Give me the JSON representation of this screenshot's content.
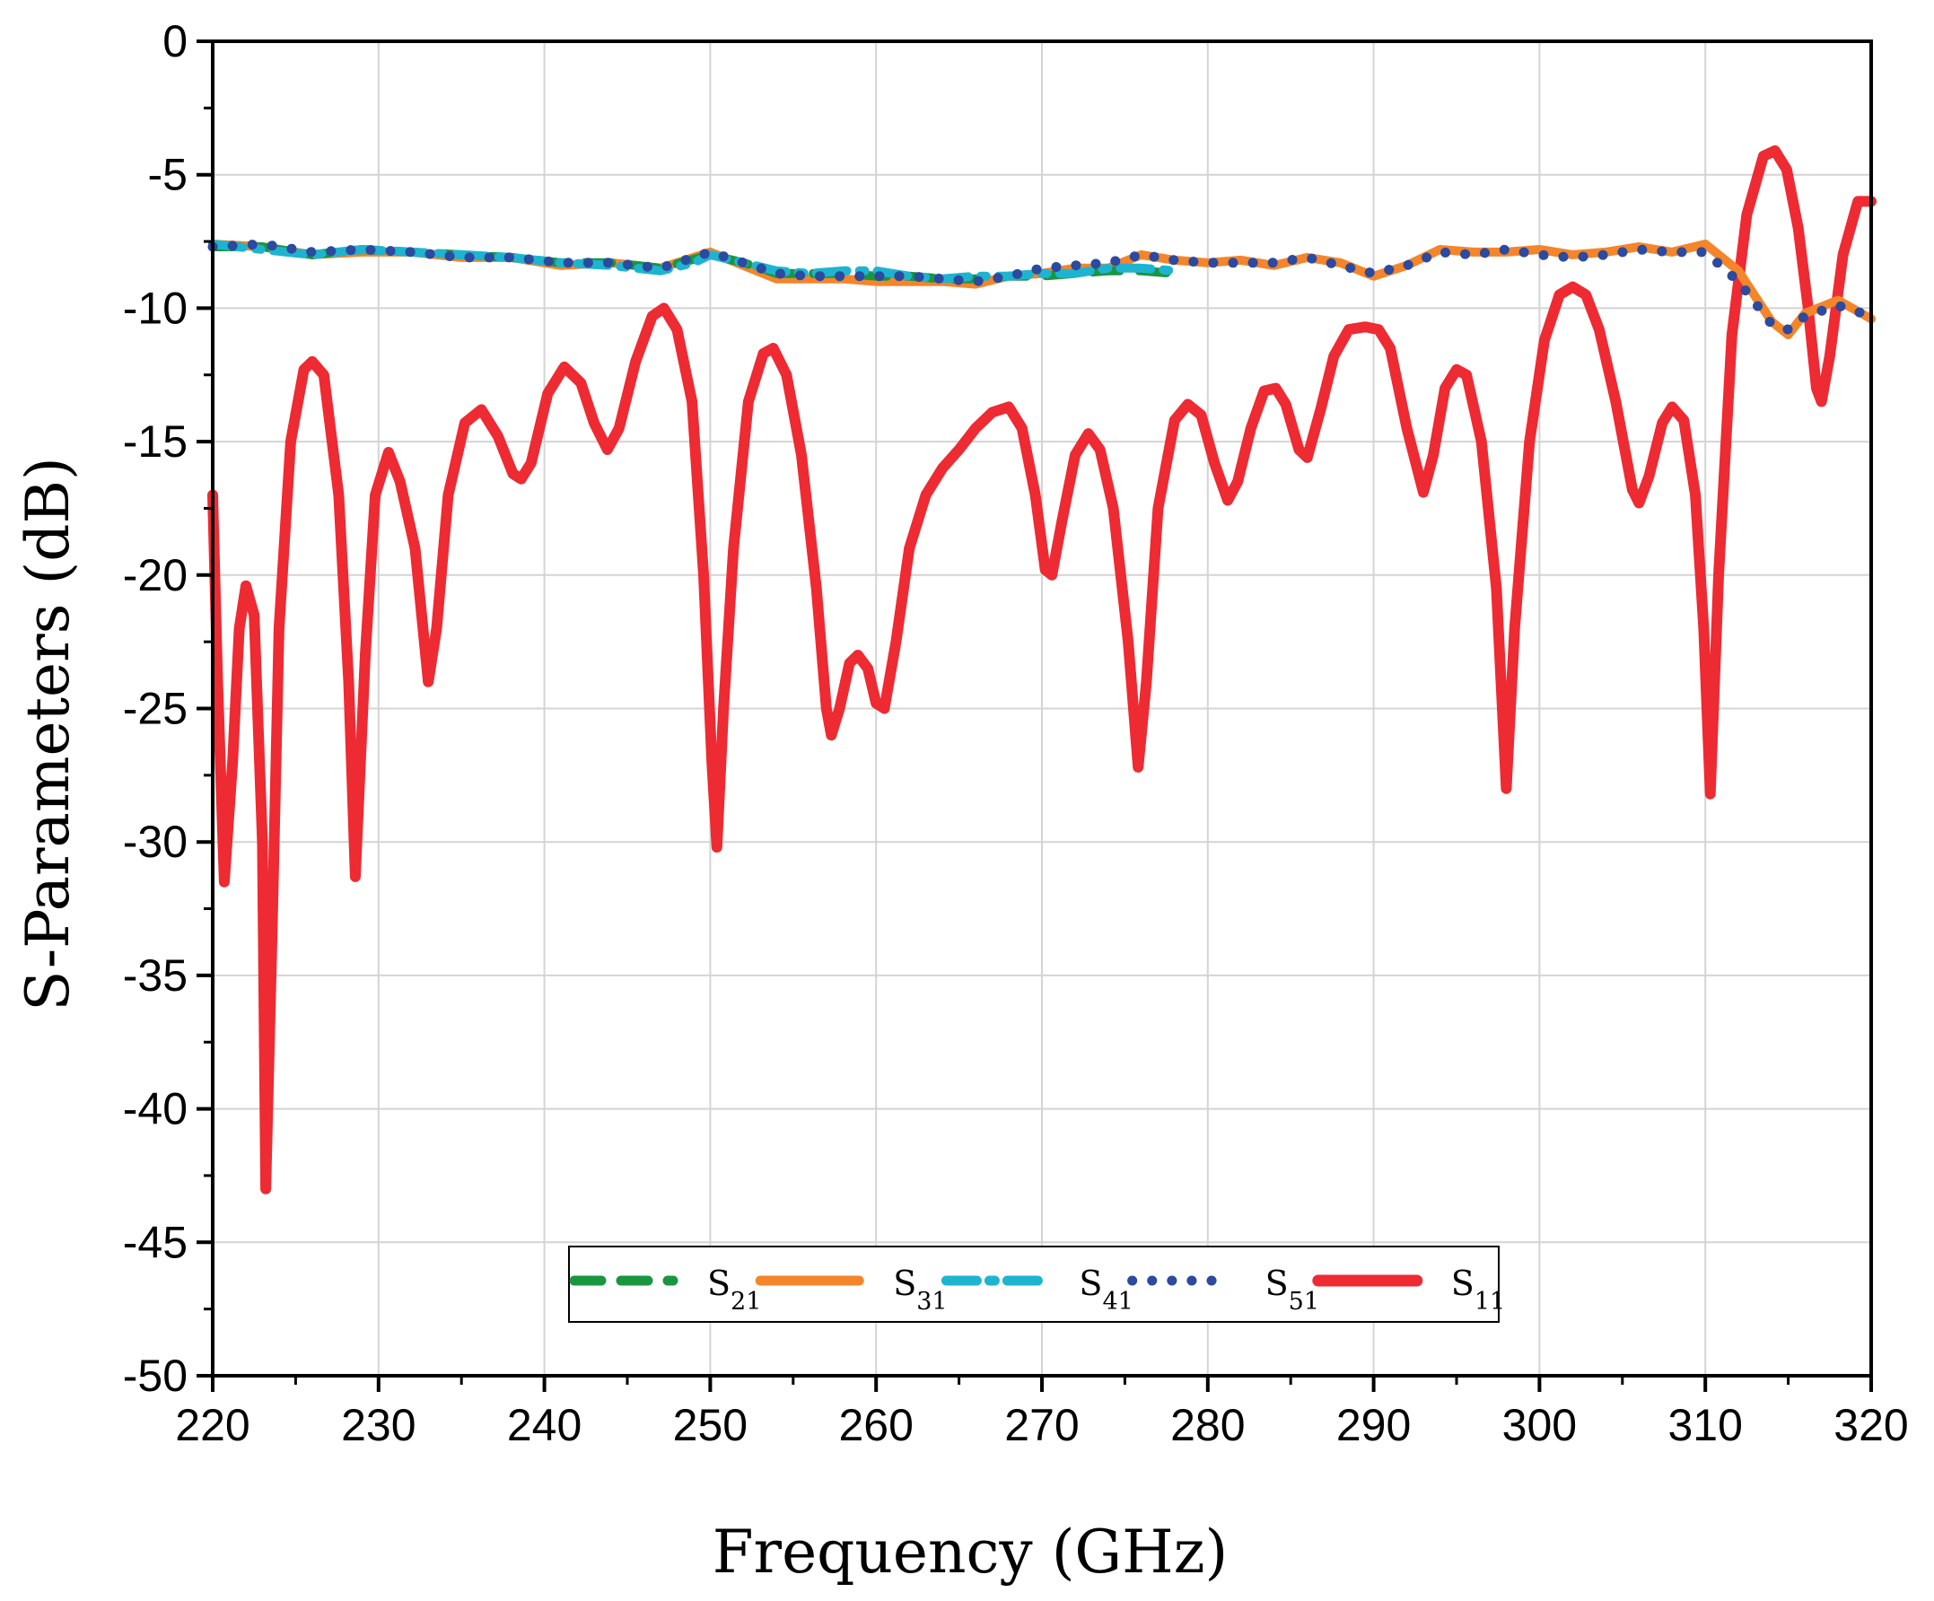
{
  "chart_data": {
    "type": "line",
    "xlabel": "Frequency (GHz)",
    "ylabel": "S-Parameters (dB)",
    "xlim": [
      220,
      320
    ],
    "ylim": [
      -50,
      0
    ],
    "x_ticks": [
      220,
      230,
      240,
      250,
      260,
      270,
      280,
      290,
      300,
      310,
      320
    ],
    "y_ticks": [
      0,
      -5,
      -10,
      -15,
      -20,
      -25,
      -30,
      -35,
      -40,
      -45,
      -50
    ],
    "grid": true,
    "legend_position": "bottom-center",
    "series": [
      {
        "name": "S",
        "name_subscript": "21",
        "color": "#1a9641",
        "style": "dashed",
        "points": [
          [
            220,
            -7.7
          ],
          [
            223,
            -7.7
          ],
          [
            226,
            -8.0
          ],
          [
            229,
            -7.8
          ],
          [
            232,
            -7.9
          ],
          [
            235,
            -8.0
          ],
          [
            238,
            -8.1
          ],
          [
            241,
            -8.3
          ],
          [
            244,
            -8.3
          ],
          [
            247,
            -8.5
          ],
          [
            250,
            -8.0
          ],
          [
            252,
            -8.3
          ],
          [
            254,
            -8.7
          ],
          [
            256,
            -8.7
          ],
          [
            258,
            -8.7
          ],
          [
            260,
            -8.8
          ],
          [
            262,
            -8.8
          ],
          [
            264,
            -8.9
          ],
          [
            266,
            -8.9
          ],
          [
            268,
            -8.8
          ],
          [
            270,
            -8.8
          ],
          [
            272,
            -8.7
          ],
          [
            274,
            -8.6
          ],
          [
            276,
            -8.6
          ],
          [
            278,
            -8.7
          ]
        ]
      },
      {
        "name": "S",
        "name_subscript": "31",
        "color": "#f5852a",
        "style": "solid",
        "points": [
          [
            220,
            -7.6
          ],
          [
            223,
            -7.7
          ],
          [
            226,
            -8.0
          ],
          [
            229,
            -7.9
          ],
          [
            232,
            -7.9
          ],
          [
            235,
            -8.1
          ],
          [
            238,
            -8.1
          ],
          [
            241,
            -8.4
          ],
          [
            244,
            -8.3
          ],
          [
            247,
            -8.5
          ],
          [
            250,
            -7.9
          ],
          [
            252,
            -8.4
          ],
          [
            254,
            -8.9
          ],
          [
            256,
            -8.9
          ],
          [
            258,
            -8.9
          ],
          [
            260,
            -9.0
          ],
          [
            262,
            -9.0
          ],
          [
            264,
            -9.0
          ],
          [
            266,
            -9.1
          ],
          [
            268,
            -8.8
          ],
          [
            270,
            -8.7
          ],
          [
            272,
            -8.5
          ],
          [
            274,
            -8.5
          ],
          [
            276,
            -8.0
          ],
          [
            278,
            -8.2
          ],
          [
            280,
            -8.3
          ],
          [
            282,
            -8.2
          ],
          [
            284,
            -8.4
          ],
          [
            286,
            -8.1
          ],
          [
            288,
            -8.3
          ],
          [
            290,
            -8.8
          ],
          [
            292,
            -8.4
          ],
          [
            294,
            -7.8
          ],
          [
            296,
            -7.9
          ],
          [
            298,
            -7.9
          ],
          [
            300,
            -7.8
          ],
          [
            302,
            -8.0
          ],
          [
            304,
            -7.9
          ],
          [
            306,
            -7.7
          ],
          [
            308,
            -7.9
          ],
          [
            310,
            -7.6
          ],
          [
            312,
            -8.6
          ],
          [
            314,
            -10.5
          ],
          [
            315,
            -11.0
          ],
          [
            316,
            -10.2
          ],
          [
            318,
            -9.7
          ],
          [
            320,
            -10.4
          ]
        ]
      },
      {
        "name": "S",
        "name_subscript": "41",
        "color": "#1eb4cf",
        "style": "dash-dot",
        "points": [
          [
            220,
            -7.6
          ],
          [
            223,
            -7.8
          ],
          [
            226,
            -8.0
          ],
          [
            229,
            -7.8
          ],
          [
            232,
            -7.9
          ],
          [
            235,
            -8.0
          ],
          [
            238,
            -8.1
          ],
          [
            241,
            -8.3
          ],
          [
            244,
            -8.4
          ],
          [
            247,
            -8.6
          ],
          [
            249,
            -8.3
          ],
          [
            250,
            -8.0
          ],
          [
            252,
            -8.3
          ],
          [
            254,
            -8.6
          ],
          [
            256,
            -8.7
          ],
          [
            258,
            -8.6
          ],
          [
            260,
            -8.6
          ],
          [
            262,
            -8.8
          ],
          [
            264,
            -8.9
          ],
          [
            266,
            -8.8
          ],
          [
            268,
            -8.8
          ],
          [
            270,
            -8.7
          ],
          [
            272,
            -8.7
          ],
          [
            274,
            -8.5
          ],
          [
            276,
            -8.5
          ],
          [
            278,
            -8.6
          ]
        ]
      },
      {
        "name": "S",
        "name_subscript": "51",
        "color": "#2b4aa0",
        "style": "dotted",
        "points": [
          [
            220,
            -7.7
          ],
          [
            223,
            -7.6
          ],
          [
            226,
            -7.9
          ],
          [
            229,
            -7.8
          ],
          [
            232,
            -7.9
          ],
          [
            235,
            -8.1
          ],
          [
            238,
            -8.1
          ],
          [
            241,
            -8.3
          ],
          [
            244,
            -8.3
          ],
          [
            247,
            -8.5
          ],
          [
            250,
            -7.9
          ],
          [
            252,
            -8.3
          ],
          [
            254,
            -8.7
          ],
          [
            256,
            -8.8
          ],
          [
            258,
            -8.8
          ],
          [
            260,
            -8.8
          ],
          [
            262,
            -8.8
          ],
          [
            264,
            -8.9
          ],
          [
            266,
            -9.0
          ],
          [
            268,
            -8.8
          ],
          [
            270,
            -8.5
          ],
          [
            272,
            -8.4
          ],
          [
            274,
            -8.3
          ],
          [
            276,
            -8.0
          ],
          [
            278,
            -8.2
          ],
          [
            280,
            -8.3
          ],
          [
            282,
            -8.3
          ],
          [
            284,
            -8.3
          ],
          [
            286,
            -8.1
          ],
          [
            288,
            -8.4
          ],
          [
            290,
            -8.7
          ],
          [
            292,
            -8.4
          ],
          [
            294,
            -7.9
          ],
          [
            296,
            -8.0
          ],
          [
            298,
            -7.8
          ],
          [
            300,
            -8.0
          ],
          [
            302,
            -8.1
          ],
          [
            304,
            -8.0
          ],
          [
            306,
            -7.8
          ],
          [
            308,
            -7.9
          ],
          [
            310,
            -7.9
          ],
          [
            312,
            -9.0
          ],
          [
            314,
            -10.6
          ],
          [
            315,
            -10.8
          ],
          [
            316,
            -10.3
          ],
          [
            318,
            -9.9
          ],
          [
            320,
            -10.3
          ]
        ]
      },
      {
        "name": "S",
        "name_subscript": "11",
        "color": "#ee2a32",
        "style": "solid",
        "points": [
          [
            220,
            -17.0
          ],
          [
            220.3,
            -24.0
          ],
          [
            220.7,
            -31.5
          ],
          [
            221.2,
            -27.0
          ],
          [
            221.6,
            -22.0
          ],
          [
            222.0,
            -20.4
          ],
          [
            222.5,
            -21.5
          ],
          [
            223.0,
            -30.0
          ],
          [
            223.2,
            -43.0
          ],
          [
            223.6,
            -33.0
          ],
          [
            224.0,
            -22.0
          ],
          [
            224.7,
            -15.0
          ],
          [
            225.5,
            -12.3
          ],
          [
            226.0,
            -12.0
          ],
          [
            226.7,
            -12.5
          ],
          [
            227.6,
            -17.0
          ],
          [
            228.2,
            -24.0
          ],
          [
            228.6,
            -31.3
          ],
          [
            229.2,
            -23.0
          ],
          [
            229.8,
            -17.0
          ],
          [
            230.6,
            -15.4
          ],
          [
            231.3,
            -16.5
          ],
          [
            232.2,
            -19.0
          ],
          [
            233.0,
            -24.0
          ],
          [
            233.5,
            -22.0
          ],
          [
            234.2,
            -17.0
          ],
          [
            235.2,
            -14.3
          ],
          [
            236.2,
            -13.8
          ],
          [
            237.2,
            -14.8
          ],
          [
            238.1,
            -16.2
          ],
          [
            238.6,
            -16.4
          ],
          [
            239.2,
            -15.8
          ],
          [
            240.2,
            -13.2
          ],
          [
            241.2,
            -12.2
          ],
          [
            242.2,
            -12.8
          ],
          [
            243.0,
            -14.3
          ],
          [
            243.8,
            -15.3
          ],
          [
            244.5,
            -14.5
          ],
          [
            245.5,
            -12.0
          ],
          [
            246.5,
            -10.3
          ],
          [
            247.2,
            -10.0
          ],
          [
            248.0,
            -10.8
          ],
          [
            248.9,
            -13.5
          ],
          [
            249.6,
            -20.0
          ],
          [
            250.1,
            -27.0
          ],
          [
            250.4,
            -30.2
          ],
          [
            250.8,
            -25.0
          ],
          [
            251.4,
            -19.0
          ],
          [
            252.3,
            -13.5
          ],
          [
            253.2,
            -11.7
          ],
          [
            253.8,
            -11.5
          ],
          [
            254.6,
            -12.5
          ],
          [
            255.5,
            -15.5
          ],
          [
            256.4,
            -20.5
          ],
          [
            257.0,
            -25.0
          ],
          [
            257.3,
            -26.0
          ],
          [
            257.8,
            -25.0
          ],
          [
            258.4,
            -23.3
          ],
          [
            258.9,
            -23.0
          ],
          [
            259.5,
            -23.5
          ],
          [
            260.0,
            -24.8
          ],
          [
            260.5,
            -25.0
          ],
          [
            261.2,
            -22.5
          ],
          [
            262.0,
            -19.0
          ],
          [
            263.0,
            -17.0
          ],
          [
            264.0,
            -16.0
          ],
          [
            265.0,
            -15.3
          ],
          [
            266.0,
            -14.5
          ],
          [
            267.0,
            -13.9
          ],
          [
            268.0,
            -13.7
          ],
          [
            268.8,
            -14.5
          ],
          [
            269.6,
            -17.0
          ],
          [
            270.2,
            -19.8
          ],
          [
            270.6,
            -20.0
          ],
          [
            271.2,
            -18.0
          ],
          [
            272.0,
            -15.5
          ],
          [
            272.8,
            -14.7
          ],
          [
            273.5,
            -15.3
          ],
          [
            274.3,
            -17.5
          ],
          [
            275.2,
            -22.5
          ],
          [
            275.8,
            -27.2
          ],
          [
            276.3,
            -24.0
          ],
          [
            277.0,
            -17.5
          ],
          [
            278.0,
            -14.2
          ],
          [
            278.8,
            -13.6
          ],
          [
            279.6,
            -14.0
          ],
          [
            280.4,
            -15.8
          ],
          [
            281.2,
            -17.2
          ],
          [
            281.8,
            -16.5
          ],
          [
            282.6,
            -14.5
          ],
          [
            283.4,
            -13.1
          ],
          [
            284.1,
            -13.0
          ],
          [
            284.7,
            -13.6
          ],
          [
            285.5,
            -15.3
          ],
          [
            286.0,
            -15.6
          ],
          [
            286.8,
            -13.8
          ],
          [
            287.6,
            -11.8
          ],
          [
            288.5,
            -10.8
          ],
          [
            289.5,
            -10.7
          ],
          [
            290.3,
            -10.8
          ],
          [
            291.0,
            -11.5
          ],
          [
            292.0,
            -14.5
          ],
          [
            293.0,
            -16.9
          ],
          [
            293.6,
            -15.5
          ],
          [
            294.3,
            -13.0
          ],
          [
            295.0,
            -12.3
          ],
          [
            295.6,
            -12.5
          ],
          [
            296.5,
            -15.0
          ],
          [
            297.4,
            -20.5
          ],
          [
            298.0,
            -28.0
          ],
          [
            298.5,
            -22.0
          ],
          [
            299.4,
            -15.0
          ],
          [
            300.3,
            -11.2
          ],
          [
            301.2,
            -9.5
          ],
          [
            302.0,
            -9.2
          ],
          [
            302.8,
            -9.5
          ],
          [
            303.6,
            -10.8
          ],
          [
            304.6,
            -13.5
          ],
          [
            305.6,
            -16.8
          ],
          [
            306.0,
            -17.3
          ],
          [
            306.6,
            -16.3
          ],
          [
            307.4,
            -14.3
          ],
          [
            308.0,
            -13.7
          ],
          [
            308.7,
            -14.2
          ],
          [
            309.4,
            -17.0
          ],
          [
            309.9,
            -22.0
          ],
          [
            310.3,
            -28.2
          ],
          [
            310.8,
            -20.0
          ],
          [
            311.6,
            -11.0
          ],
          [
            312.5,
            -6.5
          ],
          [
            313.5,
            -4.3
          ],
          [
            314.2,
            -4.1
          ],
          [
            314.9,
            -4.8
          ],
          [
            315.6,
            -7.0
          ],
          [
            316.2,
            -10.0
          ],
          [
            316.7,
            -13.0
          ],
          [
            317.0,
            -13.5
          ],
          [
            317.5,
            -11.8
          ],
          [
            318.3,
            -8.0
          ],
          [
            319.2,
            -6.0
          ],
          [
            320,
            -6.0
          ]
        ]
      }
    ]
  }
}
